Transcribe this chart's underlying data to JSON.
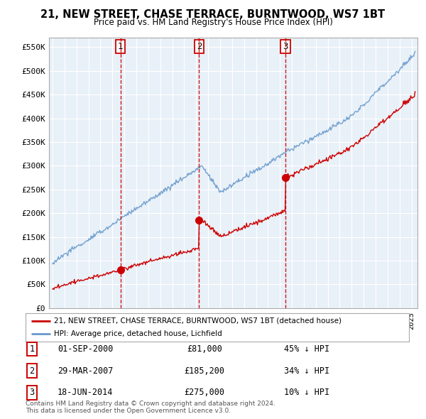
{
  "title": "21, NEW STREET, CHASE TERRACE, BURNTWOOD, WS7 1BT",
  "subtitle": "Price paid vs. HM Land Registry's House Price Index (HPI)",
  "legend_label_red": "21, NEW STREET, CHASE TERRACE, BURNTWOOD, WS7 1BT (detached house)",
  "legend_label_blue": "HPI: Average price, detached house, Lichfield",
  "sale_dates_float": [
    2000.67,
    2007.25,
    2014.46
  ],
  "sale_prices": [
    81000,
    185200,
    275000
  ],
  "sale_labels": [
    "1",
    "2",
    "3"
  ],
  "sale_notes": [
    "01-SEP-2000",
    "29-MAR-2007",
    "18-JUN-2014"
  ],
  "sale_price_labels": [
    "£81,000",
    "£185,200",
    "£275,000"
  ],
  "sale_hpi_notes": [
    "45% ↓ HPI",
    "34% ↓ HPI",
    "10% ↓ HPI"
  ],
  "red_color": "#cc0000",
  "blue_color": "#6699cc",
  "blue_fill": "#ddeeff",
  "vline_color": "#cc0000",
  "bg_color": "#ffffff",
  "grid_color": "#cccccc",
  "ylim": [
    0,
    570000
  ],
  "yticks": [
    0,
    50000,
    100000,
    150000,
    200000,
    250000,
    300000,
    350000,
    400000,
    450000,
    500000,
    550000
  ],
  "ytick_labels": [
    "£0",
    "£50K",
    "£100K",
    "£150K",
    "£200K",
    "£250K",
    "£300K",
    "£350K",
    "£400K",
    "£450K",
    "£500K",
    "£550K"
  ],
  "footer_text": "Contains HM Land Registry data © Crown copyright and database right 2024.\nThis data is licensed under the Open Government Licence v3.0.",
  "xlim_start": 1994.7,
  "xlim_end": 2025.5
}
